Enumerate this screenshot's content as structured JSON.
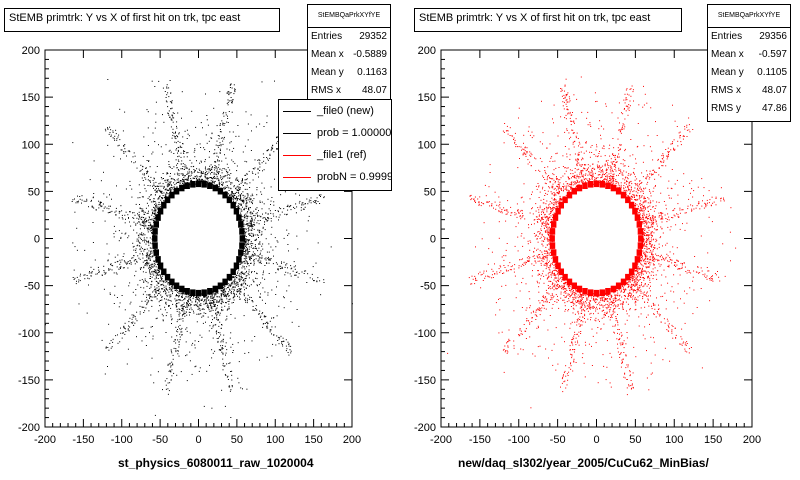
{
  "chart_data": [
    {
      "type": "scatter",
      "title": "StEMB primtrk: Y vs X of first hit on trk, tpc east",
      "xlabel": "st_physics_6080011_raw_1020004",
      "ylabel": "",
      "xlim": [
        -200,
        200
      ],
      "ylim": [
        -200,
        200
      ],
      "xticks": [
        "-200",
        "-150",
        "-100",
        "-50",
        "0",
        "50",
        "100",
        "150",
        "200"
      ],
      "yticks": [
        "200",
        "150",
        "100",
        "50",
        "0",
        "-50",
        "-100",
        "-150",
        "-200"
      ],
      "marker_color": "#000000",
      "ring": {
        "center": [
          0,
          0
        ],
        "radius_x": 57,
        "radius_y": 58,
        "thickness": 7
      },
      "stats": {
        "name": "StEMBQaPrkXYfYE",
        "rows": [
          {
            "label": "Entries",
            "value": "29352"
          },
          {
            "label": "Mean x",
            "value": "-0.5889"
          },
          {
            "label": "Mean y",
            "value": "0.1163"
          },
          {
            "label": "RMS x",
            "value": "48.07"
          }
        ]
      },
      "legend": {
        "placement": "top-right",
        "entries": [
          {
            "label": "_file0 (new)",
            "color": "#000000"
          },
          {
            "label": "prob = 1.000000",
            "color": "#000000"
          },
          {
            "label": "_file1 (ref)",
            "color": "#ff0000"
          },
          {
            "label": "probN = 0.999917",
            "color": "#ff0000"
          }
        ]
      }
    },
    {
      "type": "scatter",
      "title": "StEMB primtrk: Y vs X of first hit on trk, tpc east",
      "xlabel": "new/daq_sl302/year_2005/CuCu62_MinBias/",
      "ylabel": "",
      "xlim": [
        -200,
        200
      ],
      "ylim": [
        -200,
        200
      ],
      "xticks": [
        "-200",
        "-150",
        "-100",
        "-50",
        "0",
        "50",
        "100",
        "150",
        "200"
      ],
      "yticks": [
        "200",
        "150",
        "100",
        "50",
        "0",
        "-50",
        "-100",
        "-150",
        "-200"
      ],
      "marker_color": "#ff0000",
      "ring": {
        "center": [
          0,
          0
        ],
        "radius_x": 57,
        "radius_y": 58,
        "thickness": 7
      },
      "stats": {
        "name": "StEMBQaPrkXYfYE",
        "rows": [
          {
            "label": "Entries",
            "value": "29356"
          },
          {
            "label": "Mean x",
            "value": "-0.597"
          },
          {
            "label": "Mean y",
            "value": "0.1105"
          },
          {
            "label": "RMS x",
            "value": "48.07"
          },
          {
            "label": "RMS y",
            "value": "47.86"
          }
        ]
      }
    }
  ]
}
